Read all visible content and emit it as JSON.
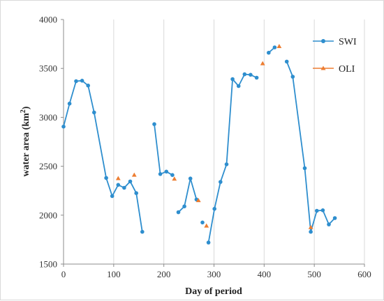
{
  "chart_data": {
    "type": "line",
    "xlabel": "Day of period",
    "ylabel": "water area (km²)",
    "ylabel_base": "water area (km",
    "ylabel_sup": "2",
    "ylabel_tail": ")",
    "xlim": [
      0,
      600
    ],
    "ylim": [
      1500,
      4000
    ],
    "x_ticks": [
      0,
      100,
      200,
      300,
      400,
      500,
      600
    ],
    "y_ticks": [
      1500,
      2000,
      2500,
      3000,
      3500,
      4000
    ],
    "x_tick_labels": [
      "0",
      "100",
      "200",
      "300",
      "400",
      "500",
      "600"
    ],
    "y_tick_labels": [
      "1500",
      "2000",
      "2500",
      "3000",
      "3500",
      "4000"
    ],
    "grid": "vertical",
    "legend_position": "right",
    "series": [
      {
        "name": "SWI",
        "color": "#2e8ece",
        "marker": "circle",
        "segments": [
          [
            [
              0,
              2905
            ],
            [
              12,
              3140
            ],
            [
              25,
              3370
            ],
            [
              37,
              3375
            ],
            [
              49,
              3325
            ],
            [
              61,
              3050
            ],
            [
              85,
              2380
            ],
            [
              97,
              2195
            ],
            [
              109,
              2310
            ],
            [
              121,
              2280
            ],
            [
              133,
              2345
            ],
            [
              145,
              2225
            ],
            [
              157,
              1830
            ]
          ],
          [
            [
              181,
              2930
            ],
            [
              193,
              2420
            ],
            [
              205,
              2445
            ],
            [
              217,
              2410
            ]
          ],
          [
            [
              229,
              2030
            ],
            [
              241,
              2090
            ],
            [
              253,
              2375
            ],
            [
              265,
              2160
            ]
          ],
          [
            [
              277,
              1925
            ]
          ],
          [
            [
              289,
              1720
            ],
            [
              301,
              2065
            ],
            [
              313,
              2340
            ],
            [
              325,
              2520
            ],
            [
              337,
              3390
            ],
            [
              349,
              3320
            ],
            [
              361,
              3440
            ],
            [
              373,
              3435
            ],
            [
              385,
              3405
            ]
          ],
          [
            [
              409,
              3660
            ],
            [
              421,
              3715
            ]
          ],
          [
            [
              445,
              3570
            ],
            [
              457,
              3415
            ],
            [
              481,
              2480
            ],
            [
              493,
              1830
            ],
            [
              505,
              2045
            ],
            [
              517,
              2050
            ],
            [
              529,
              1905
            ],
            [
              541,
              1970
            ]
          ]
        ]
      },
      {
        "name": "OLI",
        "color": "#ed7d31",
        "marker": "triangle",
        "points": [
          [
            109,
            2375
          ],
          [
            141,
            2410
          ],
          [
            221,
            2370
          ],
          [
            269,
            2150
          ],
          [
            285,
            1890
          ],
          [
            397,
            3550
          ],
          [
            430,
            3725
          ],
          [
            493,
            1875
          ]
        ]
      }
    ]
  }
}
